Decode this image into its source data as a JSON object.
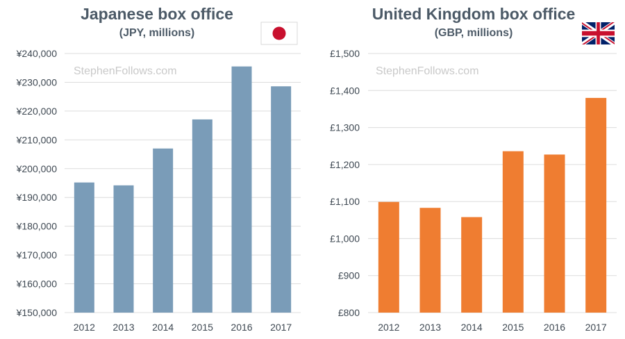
{
  "watermark": "StephenFollows.com",
  "chart_data": [
    {
      "type": "bar",
      "title": "Japanese box office",
      "subtitle": "(JPY, millions)",
      "flag": "japan-flag",
      "color": "#7a9cb8",
      "categories": [
        "2012",
        "2013",
        "2014",
        "2015",
        "2016",
        "2017"
      ],
      "values": [
        195200,
        194200,
        207000,
        217100,
        235500,
        228600
      ],
      "ylim": [
        150000,
        240000
      ],
      "yticks": [
        150000,
        160000,
        170000,
        180000,
        190000,
        200000,
        210000,
        220000,
        230000,
        240000
      ],
      "ytick_labels": [
        "¥150,000",
        "¥160,000",
        "¥170,000",
        "¥180,000",
        "¥190,000",
        "¥200,000",
        "¥210,000",
        "¥220,000",
        "¥230,000",
        "¥240,000"
      ],
      "grid": true
    },
    {
      "type": "bar",
      "title": "United Kingdom box office",
      "subtitle": "(GBP, millions)",
      "flag": "uk-flag",
      "color": "#ef7d31",
      "categories": [
        "2012",
        "2013",
        "2014",
        "2015",
        "2016",
        "2017"
      ],
      "values": [
        1099,
        1083,
        1058,
        1236,
        1227,
        1380
      ],
      "ylim": [
        800,
        1500
      ],
      "yticks": [
        800,
        900,
        1000,
        1100,
        1200,
        1300,
        1400,
        1500
      ],
      "ytick_labels": [
        "£800",
        "£900",
        "£1,000",
        "£1,100",
        "£1,200",
        "£1,300",
        "£1,400",
        "£1,500"
      ],
      "grid": true
    }
  ]
}
